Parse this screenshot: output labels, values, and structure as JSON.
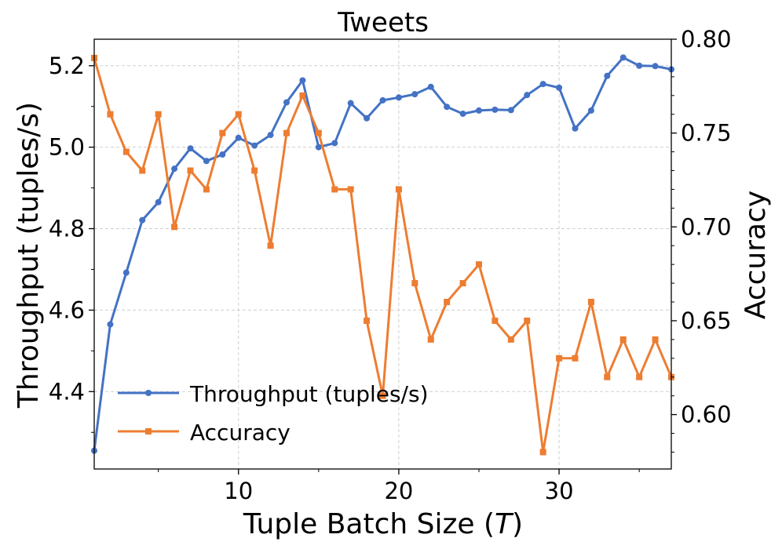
{
  "chart_data": {
    "type": "line",
    "title": "Tweets",
    "xlabel": "Tuple Batch Size (",
    "xlabel_var": "T",
    "xlabel_end": ")",
    "ylabel": "Throughput (tuples/s)",
    "y2label": "Accuracy",
    "xlim": [
      1,
      37
    ],
    "ylim": [
      4.21,
      5.265
    ],
    "y2lim": [
      0.571,
      0.8
    ],
    "xticks": [
      10,
      20,
      30
    ],
    "yticks": [
      4.4,
      4.6,
      4.8,
      5.0,
      5.2
    ],
    "y2ticks": [
      0.6,
      0.65,
      0.7,
      0.75,
      0.8
    ],
    "grid": true,
    "legend_position": "lower-left",
    "x": [
      1,
      2,
      3,
      4,
      5,
      6,
      7,
      8,
      9,
      10,
      11,
      12,
      13,
      14,
      15,
      16,
      17,
      18,
      19,
      20,
      21,
      22,
      23,
      24,
      25,
      26,
      27,
      28,
      29,
      30,
      31,
      32,
      33,
      34,
      35,
      36,
      37
    ],
    "series": [
      {
        "name": "Throughput (tuples/s)",
        "axis": "left",
        "marker": "circle",
        "color": "#4472c4",
        "values": [
          4.255,
          4.565,
          4.692,
          4.821,
          4.865,
          4.947,
          4.997,
          4.966,
          4.982,
          5.023,
          5.004,
          5.03,
          5.11,
          5.164,
          5.0,
          5.01,
          5.108,
          5.071,
          5.115,
          5.122,
          5.13,
          5.148,
          5.099,
          5.082,
          5.09,
          5.092,
          5.091,
          5.128,
          5.155,
          5.146,
          5.046,
          5.09,
          5.175,
          5.22,
          5.2,
          5.199,
          5.191
        ]
      },
      {
        "name": "Accuracy",
        "axis": "right",
        "marker": "square",
        "color": "#ed7d31",
        "values": [
          0.79,
          0.76,
          0.74,
          0.73,
          0.76,
          0.7,
          0.73,
          0.72,
          0.75,
          0.76,
          0.73,
          0.69,
          0.75,
          0.77,
          0.75,
          0.72,
          0.72,
          0.65,
          0.61,
          0.72,
          0.67,
          0.64,
          0.66,
          0.67,
          0.68,
          0.65,
          0.64,
          0.65,
          0.58,
          0.63,
          0.63,
          0.66,
          0.62,
          0.64,
          0.62,
          0.64,
          0.62
        ]
      }
    ]
  }
}
